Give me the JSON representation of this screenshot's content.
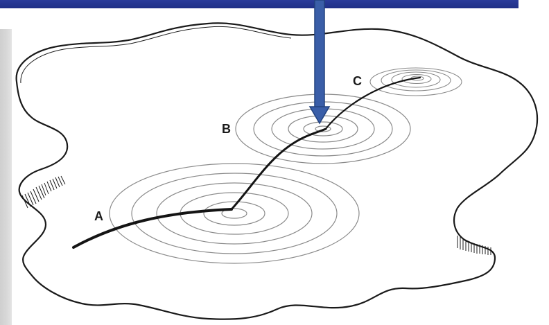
{
  "labels": {
    "a": "A",
    "b": "B",
    "c": "C"
  },
  "colors": {
    "top_bar": "#23358f",
    "arrow": "#3a5ea8",
    "arrow_edge": "#22427e",
    "path": "#141414",
    "ripple": "#8a8a8a",
    "outline": "#1a1a1a",
    "side_strip": "#d6d6d6"
  }
}
